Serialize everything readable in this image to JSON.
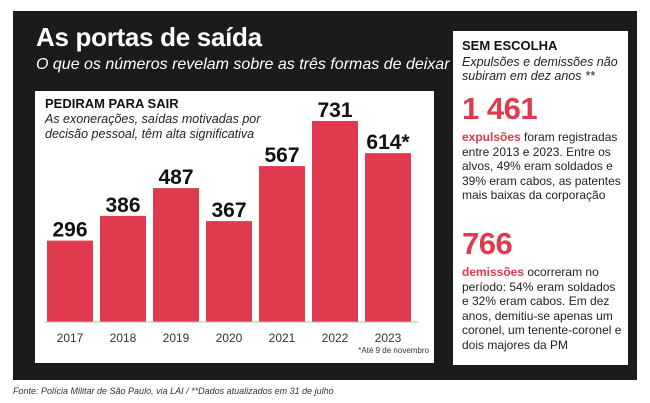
{
  "header": {
    "title": "As portas de saída",
    "subtitle": "O que os números revelam sobre as três formas de deixar a PM"
  },
  "chart_data": {
    "type": "bar",
    "title": "PEDIRAM PARA SAIR",
    "subtitle": "As exonerações, saídas motivadas por decisão pessoal, têm alta significativa",
    "categories": [
      "2017",
      "2018",
      "2019",
      "2020",
      "2021",
      "2022",
      "2023"
    ],
    "values": [
      296,
      386,
      487,
      367,
      567,
      731,
      614
    ],
    "value_labels": [
      "296",
      "386",
      "487",
      "367",
      "567",
      "731",
      "614*"
    ],
    "footnote": "*Até 9 de novembro",
    "ylim": [
      0,
      731
    ],
    "xlabel": "",
    "ylabel": "",
    "bar_color": "#e03a4e"
  },
  "side": {
    "title": "SEM ESCOLHA",
    "subtitle": "Expulsões e demissões não subiram em dez anos **",
    "expulsions": {
      "number": "1 461",
      "keyword": "expulsões",
      "text": " foram registradas entre 2013 e 2023. Entre os alvos, 49% eram soldados e 39% eram cabos, as patentes mais baixas da corporação"
    },
    "dismissals": {
      "number": "766",
      "keyword": "demissões",
      "text": " ocorreram no período: 54% eram soldados e 32% eram cabos. Em dez anos, demitiu-se apenas um coronel, um tenente-coronel e dois majores da PM"
    }
  },
  "footer": {
    "source": "Fonte: Polícia Militar de São Paulo, via LAI / **Dados atualizados em 31 de julho"
  }
}
